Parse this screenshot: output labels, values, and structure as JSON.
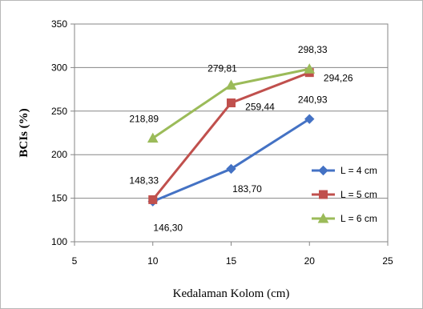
{
  "chart_data": {
    "type": "line",
    "title": "",
    "xlabel": "Kedalaman Kolom (cm)",
    "ylabel": "BCIs (%)",
    "xlim": [
      5,
      25
    ],
    "ylim": [
      100,
      350
    ],
    "xticks": [
      5,
      10,
      15,
      20,
      25
    ],
    "yticks": [
      100,
      150,
      200,
      250,
      300,
      350
    ],
    "grid": "horizontal",
    "legend_position": "right",
    "x": [
      10,
      15,
      20
    ],
    "series": [
      {
        "name": "L = 4 cm",
        "color": "#4472c4",
        "marker": "diamond",
        "values": [
          146.3,
          183.7,
          240.93
        ],
        "labels": [
          "146,30",
          "183,70",
          "240,93"
        ]
      },
      {
        "name": "L = 5 cm",
        "color": "#c0504d",
        "marker": "square",
        "values": [
          148.33,
          259.44,
          294.26
        ],
        "labels": [
          "148,33",
          "259,44",
          "294,26"
        ]
      },
      {
        "name": "L = 6 cm",
        "color": "#9bbb59",
        "marker": "triangle",
        "values": [
          218.89,
          279.81,
          298.33
        ],
        "labels": [
          "218,89",
          "279,81",
          "298,33"
        ]
      }
    ]
  }
}
